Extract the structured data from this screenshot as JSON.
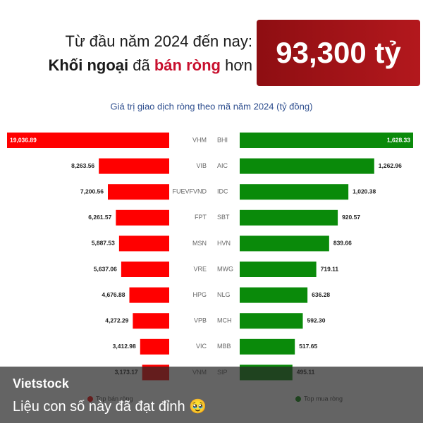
{
  "headline": {
    "line1": "Từ đầu năm 2024 đến nay:",
    "line2": [
      "Khối ngoại",
      "đã",
      "bán ròng",
      "hơn"
    ],
    "highlight": "93,300 tỷ"
  },
  "chart_data": {
    "type": "bar",
    "orientation": "horizontal",
    "title": "Giá trị giao dịch ròng theo mã năm 2024 (tỷ đồng)",
    "series": [
      {
        "name": "Top bán ròng",
        "color": "#ff0000",
        "side": "left",
        "categories": [
          "VHM",
          "VIB",
          "FUEVFVND",
          "FPT",
          "MSN",
          "VRE",
          "HPG",
          "VPB",
          "VIC",
          "VNM"
        ],
        "values": [
          19036.89,
          8263.56,
          7200.56,
          6261.57,
          5887.53,
          5637.06,
          4676.88,
          4272.29,
          3412.98,
          3173.17
        ],
        "value_labels": [
          "19,036.89",
          "8,263.56",
          "7,200.56",
          "6,261.57",
          "5,887.53",
          "5,637.06",
          "4,676.88",
          "4,272.29",
          "3,412.98",
          "3,173.17"
        ]
      },
      {
        "name": "Top mua ròng",
        "color": "#0a8a0a",
        "side": "right",
        "categories": [
          "BHI",
          "AIC",
          "IDC",
          "SBT",
          "HVN",
          "MWG",
          "NLG",
          "MCH",
          "MBB",
          "SIP"
        ],
        "values": [
          1628.33,
          1262.96,
          1020.38,
          920.57,
          839.66,
          719.11,
          636.28,
          592.3,
          517.65,
          495.11
        ],
        "value_labels": [
          "1,628.33",
          "1,262.96",
          "1,020.38",
          "920.57",
          "839.66",
          "719.11",
          "636.28",
          "592.30",
          "517.65",
          "495.11"
        ]
      }
    ]
  },
  "post": {
    "author": "Vietstock",
    "caption": "Liệu con số này đã đạt đỉnh 🥹"
  }
}
